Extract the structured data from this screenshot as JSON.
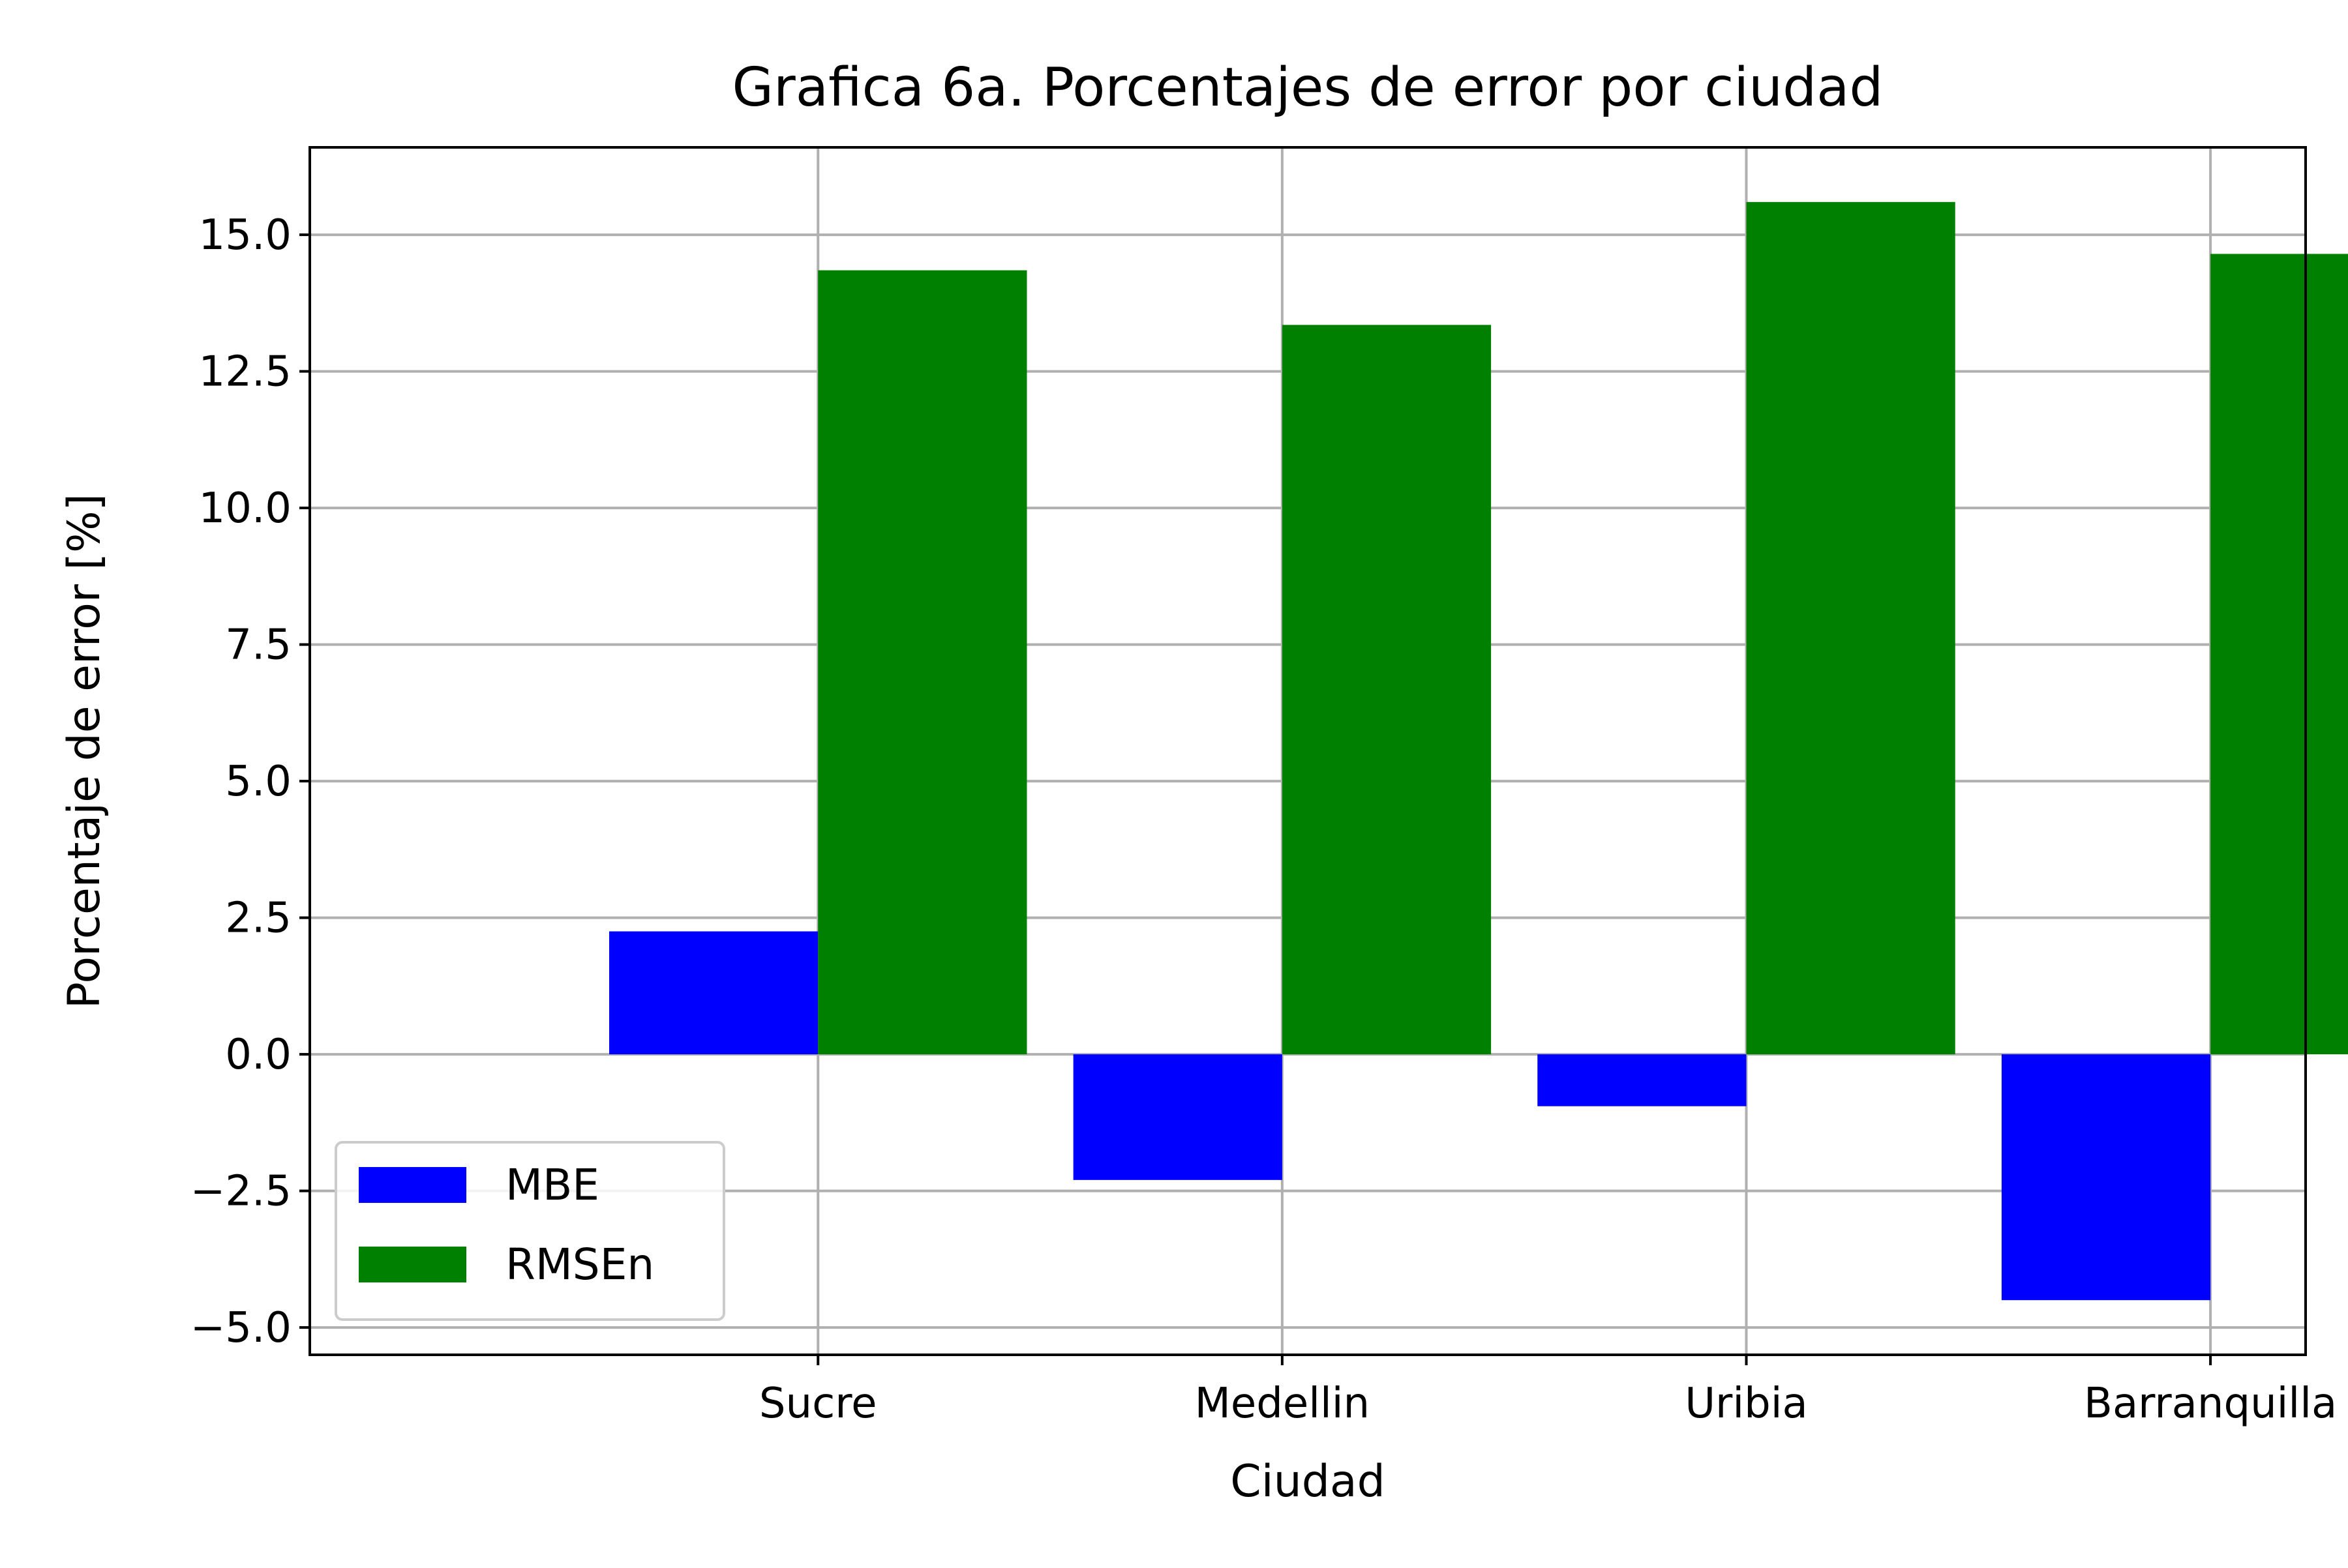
{
  "chart_data": {
    "type": "bar",
    "title": "Grafica 6a. Porcentajes de error por ciudad",
    "xlabel": "Ciudad",
    "ylabel": "Porcentaje de error [%]",
    "categories": [
      "Sucre",
      "Medellin",
      "Uribia",
      "Barranquilla"
    ],
    "series": [
      {
        "name": "MBE",
        "color": "#0000ff",
        "values": [
          2.25,
          -2.3,
          -0.95,
          -4.5
        ]
      },
      {
        "name": "RMSEn",
        "color": "#008000",
        "values": [
          14.35,
          13.35,
          15.6,
          14.65
        ]
      }
    ],
    "ylim": [
      -5.5,
      16.6
    ],
    "yticks": [
      -5.0,
      -2.5,
      0.0,
      2.5,
      5.0,
      7.5,
      10.0,
      12.5,
      15.0
    ],
    "ytick_labels": [
      "−5.0",
      "−2.5",
      "0.0",
      "2.5",
      "5.0",
      "7.5",
      "10.0",
      "12.5",
      "15.0"
    ],
    "grid": true,
    "legend_position": "lower-left"
  }
}
